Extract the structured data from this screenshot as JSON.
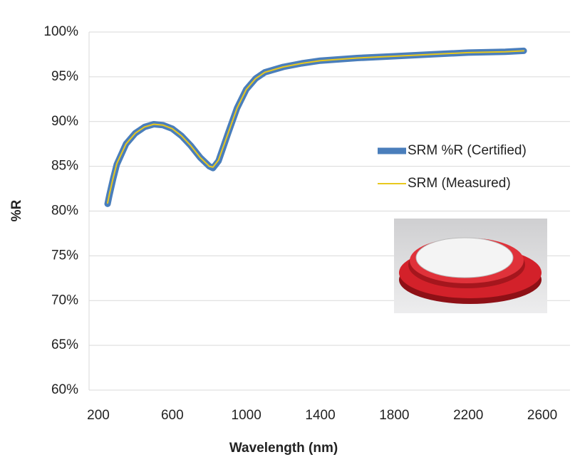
{
  "chart_data": {
    "type": "line",
    "x_label": "Wavelength (nm)",
    "y_label": "%R",
    "x": [
      250,
      260,
      280,
      300,
      350,
      400,
      450,
      500,
      550,
      600,
      650,
      700,
      750,
      800,
      820,
      850,
      900,
      950,
      1000,
      1050,
      1100,
      1200,
      1300,
      1400,
      1600,
      1800,
      2000,
      2200,
      2400,
      2500
    ],
    "series": [
      {
        "name": "SRM %R (Certified)",
        "color": "#4a7ebb",
        "values": [
          80.8,
          81.8,
          83.6,
          85.2,
          87.5,
          88.7,
          89.4,
          89.7,
          89.6,
          89.2,
          88.4,
          87.3,
          86.0,
          85.0,
          84.8,
          85.6,
          88.6,
          91.5,
          93.6,
          94.8,
          95.5,
          96.1,
          96.5,
          96.8,
          97.1,
          97.3,
          97.5,
          97.7,
          97.8,
          97.9
        ]
      },
      {
        "name": "SRM (Measured)",
        "color": "#e8c81e",
        "values": [
          80.9,
          81.9,
          83.7,
          85.3,
          87.5,
          88.7,
          89.4,
          89.7,
          89.6,
          89.2,
          88.4,
          87.3,
          86.0,
          85.0,
          84.9,
          85.7,
          88.6,
          91.5,
          93.6,
          94.8,
          95.5,
          96.1,
          96.5,
          96.8,
          97.1,
          97.3,
          97.5,
          97.7,
          97.8,
          97.9
        ]
      }
    ],
    "xlim": [
      150,
      2750
    ],
    "xticks": [
      200,
      600,
      1000,
      1400,
      1800,
      2200,
      2600
    ],
    "ylim": [
      60,
      100
    ],
    "yticks": [
      {
        "value": 60,
        "label": "60%"
      },
      {
        "value": 65,
        "label": "65%"
      },
      {
        "value": 70,
        "label": "70%"
      },
      {
        "value": 75,
        "label": "75%"
      },
      {
        "value": 80,
        "label": "80%"
      },
      {
        "value": 85,
        "label": "85%"
      },
      {
        "value": 90,
        "label": "90%"
      },
      {
        "value": 95,
        "label": "95%"
      },
      {
        "value": 100,
        "label": "100%"
      }
    ],
    "grid": true,
    "legend": "right"
  }
}
